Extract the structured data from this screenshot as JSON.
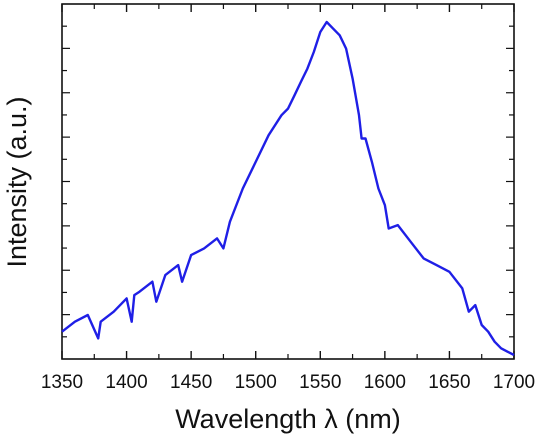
{
  "chart_data": {
    "type": "line",
    "xlabel": "Wavelength λ (nm)",
    "ylabel": "Intensity (a.u.)",
    "xlim": [
      1350,
      1700
    ],
    "x_ticks": [
      1350,
      1400,
      1450,
      1500,
      1550,
      1600,
      1650,
      1700
    ],
    "x_tick_labels": [
      "1350",
      "1400",
      "1450",
      "1500",
      "1550",
      "1600",
      "1650",
      "1700"
    ],
    "ylim": [
      0,
      1.0
    ],
    "y_tick_labels_shown": false,
    "grid": false,
    "legend": "none",
    "series": [
      {
        "color": "#1f1fe6",
        "x": [
          1350,
          1360,
          1370,
          1378,
          1380,
          1390,
          1400,
          1404,
          1406,
          1410,
          1420,
          1423,
          1430,
          1440,
          1443,
          1450,
          1460,
          1470,
          1475,
          1480,
          1490,
          1500,
          1510,
          1520,
          1525,
          1530,
          1535,
          1540,
          1545,
          1550,
          1555,
          1560,
          1565,
          1570,
          1575,
          1580,
          1582,
          1585,
          1590,
          1595,
          1600,
          1603,
          1610,
          1620,
          1630,
          1640,
          1650,
          1660,
          1665,
          1670,
          1675,
          1680,
          1685,
          1690,
          1695,
          1700
        ],
        "y": [
          0.07,
          0.1,
          0.12,
          0.05,
          0.1,
          0.13,
          0.17,
          0.1,
          0.18,
          0.19,
          0.22,
          0.16,
          0.24,
          0.27,
          0.22,
          0.3,
          0.32,
          0.35,
          0.32,
          0.4,
          0.5,
          0.58,
          0.66,
          0.72,
          0.74,
          0.78,
          0.82,
          0.86,
          0.91,
          0.97,
          1.0,
          0.98,
          0.96,
          0.92,
          0.83,
          0.72,
          0.65,
          0.65,
          0.58,
          0.5,
          0.45,
          0.38,
          0.39,
          0.34,
          0.29,
          0.27,
          0.25,
          0.2,
          0.13,
          0.15,
          0.09,
          0.07,
          0.04,
          0.02,
          0.01,
          0.0
        ]
      }
    ]
  }
}
